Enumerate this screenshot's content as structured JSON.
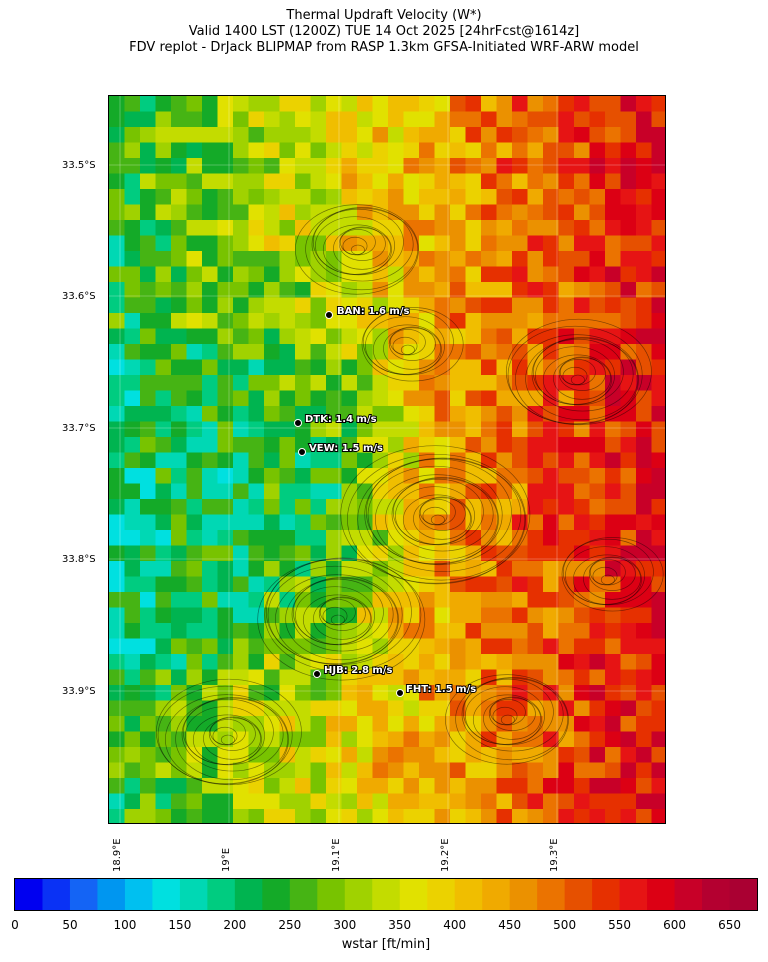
{
  "title": {
    "line1": "Thermal Updraft Velocity (W*)",
    "line2": "Valid 1400 LST (1200Z) TUE 14 Oct 2025 [24hrFcst@1614z]",
    "line3": "FDV replot - DrJack BLIPMAP from RASP 1.3km GFSA-Initiated WRF-ARW model"
  },
  "axes": {
    "lat_labels": [
      "33.5°S",
      "33.6°S",
      "33.7°S",
      "33.8°S",
      "33.9°S"
    ],
    "lon_labels": [
      "18.9°E",
      "19°E",
      "19.1°E",
      "19.2°E",
      "19.3°E"
    ]
  },
  "stations": [
    {
      "code": "BAN",
      "value": "1.6 m/s",
      "label": "BAN: 1.6 m/s"
    },
    {
      "code": "DTK",
      "value": "1.4 m/s",
      "label": "DTK: 1.4 m/s"
    },
    {
      "code": "VEW",
      "value": "1.5 m/s",
      "label": "VEW: 1.5 m/s"
    },
    {
      "code": "HJB",
      "value": "2.8 m/s",
      "label": "HJB: 2.8 m/s"
    },
    {
      "code": "FHT",
      "value": "1.5 m/s",
      "label": "FHT: 1.5 m/s"
    }
  ],
  "colorbar": {
    "label": "wstar [ft/min]",
    "ticks": [
      "0",
      "50",
      "100",
      "150",
      "200",
      "250",
      "300",
      "350",
      "400",
      "450",
      "500",
      "550",
      "600",
      "650"
    ],
    "min": 0,
    "max": 675,
    "step": 25,
    "colors": [
      "#0000f0",
      "#0a32f5",
      "#1464f5",
      "#0096f0",
      "#00c0f0",
      "#00e0e0",
      "#00d8b4",
      "#00cc80",
      "#00b450",
      "#14aa28",
      "#46b414",
      "#78c300",
      "#a0d200",
      "#c3dc00",
      "#e1e100",
      "#ebd200",
      "#f0be00",
      "#f0aa00",
      "#eb9100",
      "#eb7300",
      "#e65000",
      "#e63000",
      "#e61414",
      "#dc0014",
      "#c80028",
      "#b40030",
      "#aa0032"
    ]
  }
}
